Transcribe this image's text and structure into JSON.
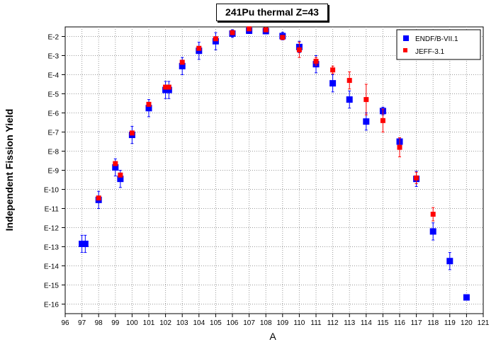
{
  "chart_data": {
    "type": "scatter",
    "title": "241Pu thermal Z=43",
    "xlabel": "A",
    "ylabel": "Independent Fission Yield",
    "xlim": [
      96,
      121
    ],
    "ylim_exponent": [
      -16.5,
      -1.5
    ],
    "y_scale": "log",
    "grid": "dotted",
    "legend_position": "top-right",
    "x_ticks": [
      "96",
      "97",
      "98",
      "99",
      "100",
      "101",
      "102",
      "103",
      "104",
      "105",
      "106",
      "107",
      "108",
      "109",
      "110",
      "111",
      "112",
      "113",
      "114",
      "115",
      "116",
      "117",
      "118",
      "119",
      "120",
      "121"
    ],
    "y_ticks": [
      "E-2",
      "E-3",
      "E-4",
      "E-5",
      "E-6",
      "E-7",
      "E-8",
      "E-9",
      "E-10",
      "E-11",
      "E-12",
      "E-13",
      "E-14",
      "E-15",
      "E-16"
    ],
    "series": [
      {
        "name": "ENDF/B-VII.1",
        "color": "#0000ff",
        "marker": "square",
        "points": [
          {
            "x": 97,
            "y": -12.85,
            "err": 0.45
          },
          {
            "x": 97.2,
            "y": -12.85,
            "err": 0.45
          },
          {
            "x": 98,
            "y": -10.55,
            "err": 0.45
          },
          {
            "x": 99,
            "y": -8.85,
            "err": 0.45
          },
          {
            "x": 99.3,
            "y": -9.45,
            "err": 0.45
          },
          {
            "x": 100,
            "y": -7.15,
            "err": 0.45
          },
          {
            "x": 101,
            "y": -5.75,
            "err": 0.45
          },
          {
            "x": 102,
            "y": -4.8,
            "err": 0.45
          },
          {
            "x": 102.2,
            "y": -4.8,
            "err": 0.45
          },
          {
            "x": 103,
            "y": -3.55,
            "err": 0.45
          },
          {
            "x": 104,
            "y": -2.75,
            "err": 0.45
          },
          {
            "x": 105,
            "y": -2.25,
            "err": 0.45
          },
          {
            "x": 106,
            "y": -1.85,
            "err": 0.2
          },
          {
            "x": 107,
            "y": -1.7,
            "err": 0.15
          },
          {
            "x": 108,
            "y": -1.72,
            "err": 0.15
          },
          {
            "x": 109,
            "y": -1.98,
            "err": 0.2
          },
          {
            "x": 110,
            "y": -2.55,
            "err": 0.3
          },
          {
            "x": 111,
            "y": -3.45,
            "err": 0.45
          },
          {
            "x": 112,
            "y": -4.45,
            "err": 0.45
          },
          {
            "x": 113,
            "y": -5.3,
            "err": 0.45
          },
          {
            "x": 114,
            "y": -6.45,
            "err": 0.45
          },
          {
            "x": 115,
            "y": -5.9,
            "err": 0.2
          },
          {
            "x": 116,
            "y": -7.5,
            "err": 0.2
          },
          {
            "x": 117,
            "y": -9.45,
            "err": 0.4
          },
          {
            "x": 118,
            "y": -12.2,
            "err": 0.45
          },
          {
            "x": 119,
            "y": -13.75,
            "err": 0.45
          },
          {
            "x": 120,
            "y": -15.65,
            "err": 0.1
          }
        ]
      },
      {
        "name": "JEFF-3.1",
        "color": "#ff0000",
        "marker": "square",
        "points": [
          {
            "x": 98,
            "y": -10.45,
            "err": 0
          },
          {
            "x": 99,
            "y": -8.65,
            "err": 0
          },
          {
            "x": 99.3,
            "y": -9.25,
            "err": 0
          },
          {
            "x": 100,
            "y": -7.05,
            "err": 0
          },
          {
            "x": 101,
            "y": -5.55,
            "err": 0
          },
          {
            "x": 102,
            "y": -4.65,
            "err": 0
          },
          {
            "x": 102.2,
            "y": -4.65,
            "err": 0
          },
          {
            "x": 103,
            "y": -3.35,
            "err": 0
          },
          {
            "x": 104,
            "y": -2.62,
            "err": 0
          },
          {
            "x": 105,
            "y": -2.12,
            "err": 0
          },
          {
            "x": 106,
            "y": -1.8,
            "err": 0
          },
          {
            "x": 107,
            "y": -1.6,
            "err": 0
          },
          {
            "x": 108,
            "y": -1.65,
            "err": 0
          },
          {
            "x": 109,
            "y": -2.05,
            "err": 0
          },
          {
            "x": 110,
            "y": -2.7,
            "err": 0.4
          },
          {
            "x": 111,
            "y": -3.3,
            "err": 0.2
          },
          {
            "x": 112,
            "y": -3.75,
            "err": 0.2
          },
          {
            "x": 113,
            "y": -4.3,
            "err": 0.45
          },
          {
            "x": 114,
            "y": -5.3,
            "err": 0.8
          },
          {
            "x": 115,
            "y": -6.4,
            "err": 0.6
          },
          {
            "x": 116,
            "y": -7.8,
            "err": 0.5
          },
          {
            "x": 117,
            "y": -9.4,
            "err": 0.3
          },
          {
            "x": 118,
            "y": -11.3,
            "err": 0.35
          }
        ]
      }
    ]
  }
}
